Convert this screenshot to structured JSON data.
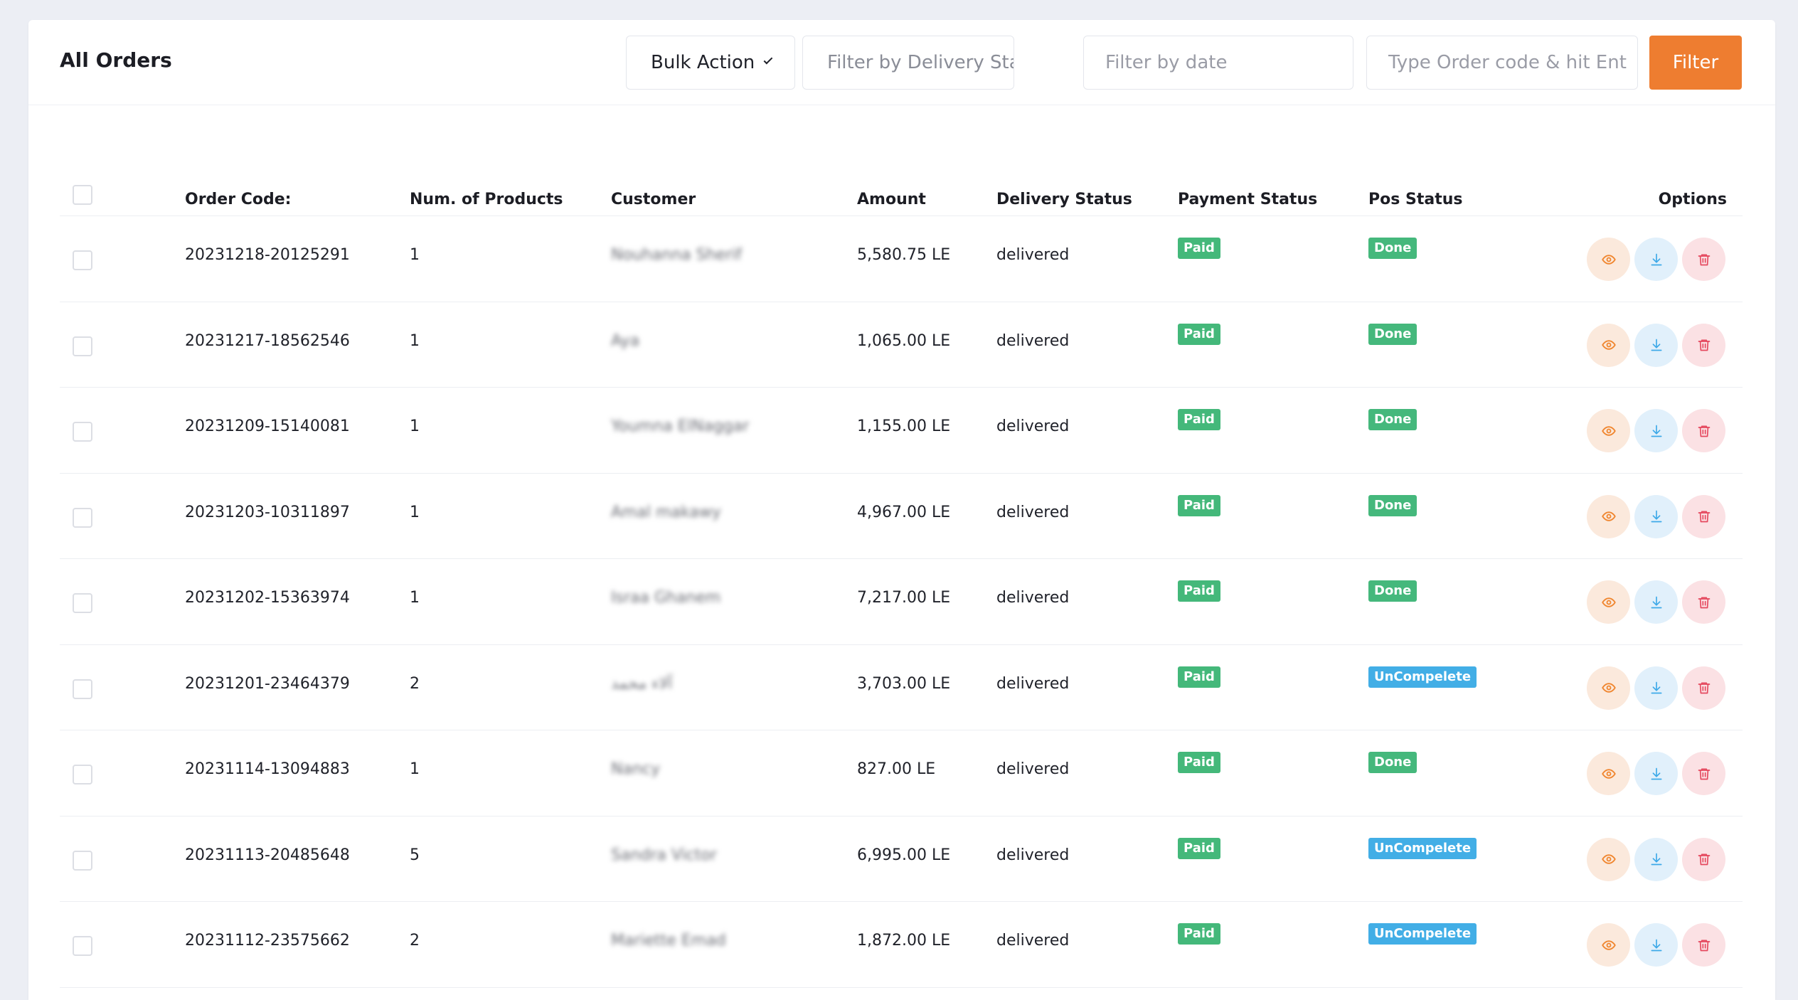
{
  "header": {
    "title": "All Orders",
    "bulk_action_label": "Bulk Action",
    "delivery_status_placeholder": "Filter by Delivery Stat...",
    "date_placeholder": "Filter by date",
    "order_code_placeholder": "Type Order code & hit Ent",
    "filter_button_label": "Filter"
  },
  "table": {
    "columns": {
      "order_code": "Order Code:",
      "num_products": "Num. of Products",
      "customer": "Customer",
      "amount": "Amount",
      "delivery_status": "Delivery Status",
      "payment_status": "Payment Status",
      "pos_status": "Pos Status",
      "options": "Options"
    },
    "rows": [
      {
        "code": "20231218-20125291",
        "num": "1",
        "customer": "Nouhanna Sherif",
        "amount": "5,580.75 LE",
        "delivery": "delivered",
        "payment": "Paid",
        "pos": "Done"
      },
      {
        "code": "20231217-18562546",
        "num": "1",
        "customer": "Aya",
        "amount": "1,065.00 LE",
        "delivery": "delivered",
        "payment": "Paid",
        "pos": "Done"
      },
      {
        "code": "20231209-15140081",
        "num": "1",
        "customer": "Youmna ElNaggar",
        "amount": "1,155.00 LE",
        "delivery": "delivered",
        "payment": "Paid",
        "pos": "Done"
      },
      {
        "code": "20231203-10311897",
        "num": "1",
        "customer": "Amal makawy",
        "amount": "4,967.00 LE",
        "delivery": "delivered",
        "payment": "Paid",
        "pos": "Done"
      },
      {
        "code": "20231202-15363974",
        "num": "1",
        "customer": "Israa Ghanem",
        "amount": "7,217.00 LE",
        "delivery": "delivered",
        "payment": "Paid",
        "pos": "Done"
      },
      {
        "code": "20231201-23464379",
        "num": "2",
        "customer": "آلاء محمد",
        "amount": "3,703.00 LE",
        "delivery": "delivered",
        "payment": "Paid",
        "pos": "UnCompelete"
      },
      {
        "code": "20231114-13094883",
        "num": "1",
        "customer": "Nancy",
        "amount": "827.00 LE",
        "delivery": "delivered",
        "payment": "Paid",
        "pos": "Done"
      },
      {
        "code": "20231113-20485648",
        "num": "5",
        "customer": "Sandra Victor",
        "amount": "6,995.00 LE",
        "delivery": "delivered",
        "payment": "Paid",
        "pos": "UnCompelete"
      },
      {
        "code": "20231112-23575662",
        "num": "2",
        "customer": "Mariette Emad",
        "amount": "1,872.00 LE",
        "delivery": "delivered",
        "payment": "Paid",
        "pos": "UnCompelete"
      }
    ]
  },
  "icons": {
    "view": "eye-icon",
    "download": "download-icon",
    "delete": "trash-icon",
    "dropdown": "chevron-down-icon"
  },
  "colors": {
    "accent": "#ee7d30",
    "paid": "#44b87a",
    "done": "#45b87c",
    "uncomplete": "#42aee6",
    "view_icon": "#f0862f",
    "download_icon": "#3da9e8",
    "delete_icon": "#e5485e"
  }
}
